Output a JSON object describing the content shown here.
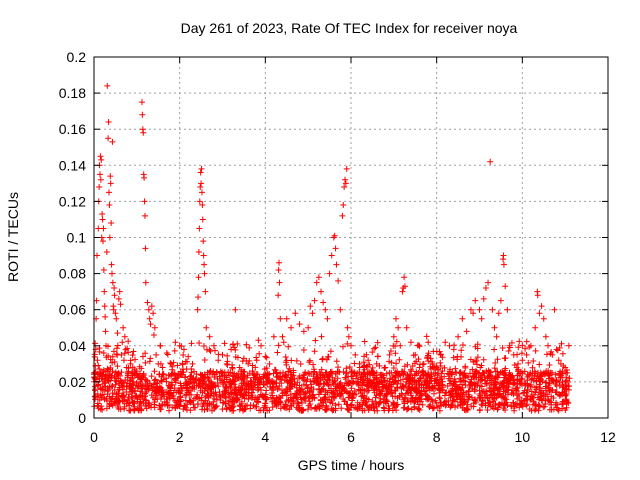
{
  "chart_data": {
    "type": "scatter",
    "title": "Day 261 of 2023, Rate Of TEC Index for receiver noya",
    "xlabel": "GPS time / hours",
    "ylabel": "ROTI / TECUs",
    "xlim": [
      0,
      12
    ],
    "ylim": [
      0,
      0.2
    ],
    "xticks": [
      "0",
      "2",
      "4",
      "6",
      "8",
      "10",
      "12"
    ],
    "yticks": [
      "0",
      "0.02",
      "0.04",
      "0.06",
      "0.08",
      "0.1",
      "0.12",
      "0.14",
      "0.16",
      "0.18",
      "0.2"
    ],
    "grid": true,
    "marker": "plus",
    "color": "#ff0000",
    "points": [
      [
        0.02,
        0.012
      ],
      [
        0.03,
        0.025
      ],
      [
        0.04,
        0.038
      ],
      [
        0.05,
        0.055
      ],
      [
        0.06,
        0.065
      ],
      [
        0.07,
        0.09
      ],
      [
        0.08,
        0.032
      ],
      [
        0.09,
        0.018
      ],
      [
        0.1,
        0.105
      ],
      [
        0.11,
        0.12
      ],
      [
        0.12,
        0.128
      ],
      [
        0.13,
        0.14
      ],
      [
        0.14,
        0.135
      ],
      [
        0.15,
        0.145
      ],
      [
        0.16,
        0.132
      ],
      [
        0.17,
        0.143
      ],
      [
        0.18,
        0.1
      ],
      [
        0.19,
        0.113
      ],
      [
        0.2,
        0.11
      ],
      [
        0.21,
        0.098
      ],
      [
        0.22,
        0.105
      ],
      [
        0.23,
        0.082
      ],
      [
        0.24,
        0.07
      ],
      [
        0.25,
        0.062
      ],
      [
        0.26,
        0.056
      ],
      [
        0.27,
        0.048
      ],
      [
        0.28,
        0.04
      ],
      [
        0.3,
        0.092
      ],
      [
        0.31,
        0.184
      ],
      [
        0.33,
        0.155
      ],
      [
        0.34,
        0.164
      ],
      [
        0.35,
        0.125
      ],
      [
        0.36,
        0.118
      ],
      [
        0.37,
        0.1
      ],
      [
        0.38,
        0.134
      ],
      [
        0.39,
        0.13
      ],
      [
        0.4,
        0.108
      ],
      [
        0.41,
        0.085
      ],
      [
        0.42,
        0.08
      ],
      [
        0.43,
        0.153
      ],
      [
        0.44,
        0.075
      ],
      [
        0.45,
        0.062
      ],
      [
        0.46,
        0.06
      ],
      [
        0.47,
        0.072
      ],
      [
        0.48,
        0.068
      ],
      [
        0.5,
        0.058
      ],
      [
        0.52,
        0.055
      ],
      [
        0.55,
        0.047
      ],
      [
        0.58,
        0.066
      ],
      [
        0.6,
        0.07
      ],
      [
        0.62,
        0.063
      ],
      [
        0.64,
        0.035
      ],
      [
        0.66,
        0.042
      ],
      [
        0.68,
        0.05
      ],
      [
        0.7,
        0.032
      ],
      [
        0.72,
        0.045
      ],
      [
        0.74,
        0.038
      ],
      [
        0.76,
        0.028
      ],
      [
        0.8,
        0.025
      ],
      [
        0.85,
        0.03
      ],
      [
        0.9,
        0.022
      ],
      [
        0.95,
        0.027
      ],
      [
        1.12,
        0.175
      ],
      [
        1.13,
        0.168
      ],
      [
        1.14,
        0.16
      ],
      [
        1.15,
        0.158
      ],
      [
        1.16,
        0.135
      ],
      [
        1.17,
        0.133
      ],
      [
        1.18,
        0.12
      ],
      [
        1.19,
        0.112
      ],
      [
        1.2,
        0.094
      ],
      [
        1.21,
        0.075
      ],
      [
        1.25,
        0.064
      ],
      [
        1.28,
        0.06
      ],
      [
        1.3,
        0.055
      ],
      [
        1.32,
        0.052
      ],
      [
        1.35,
        0.062
      ],
      [
        1.38,
        0.058
      ],
      [
        1.4,
        0.046
      ],
      [
        1.42,
        0.05
      ],
      [
        1.45,
        0.035
      ],
      [
        1.5,
        0.03
      ],
      [
        1.55,
        0.04
      ],
      [
        1.6,
        0.028
      ],
      [
        1.7,
        0.036
      ],
      [
        1.8,
        0.03
      ],
      [
        1.9,
        0.042
      ],
      [
        2.0,
        0.04
      ],
      [
        2.1,
        0.038
      ],
      [
        2.2,
        0.034
      ],
      [
        2.3,
        0.03
      ],
      [
        2.42,
        0.06
      ],
      [
        2.43,
        0.067
      ],
      [
        2.44,
        0.078
      ],
      [
        2.45,
        0.092
      ],
      [
        2.46,
        0.105
      ],
      [
        2.47,
        0.12
      ],
      [
        2.48,
        0.128
      ],
      [
        2.49,
        0.136
      ],
      [
        2.5,
        0.13
      ],
      [
        2.51,
        0.138
      ],
      [
        2.52,
        0.125
      ],
      [
        2.53,
        0.118
      ],
      [
        2.54,
        0.11
      ],
      [
        2.55,
        0.098
      ],
      [
        2.56,
        0.09
      ],
      [
        2.57,
        0.085
      ],
      [
        2.58,
        0.08
      ],
      [
        2.6,
        0.07
      ],
      [
        2.62,
        0.05
      ],
      [
        2.7,
        0.045
      ],
      [
        2.8,
        0.04
      ],
      [
        2.9,
        0.032
      ],
      [
        3.0,
        0.035
      ],
      [
        3.1,
        0.03
      ],
      [
        3.2,
        0.038
      ],
      [
        3.3,
        0.06
      ],
      [
        3.4,
        0.028
      ],
      [
        3.5,
        0.033
      ],
      [
        3.6,
        0.03
      ],
      [
        3.7,
        0.026
      ],
      [
        3.8,
        0.032
      ],
      [
        3.9,
        0.04
      ],
      [
        4.0,
        0.034
      ],
      [
        4.1,
        0.03
      ],
      [
        4.2,
        0.045
      ],
      [
        4.3,
        0.068
      ],
      [
        4.31,
        0.082
      ],
      [
        4.32,
        0.086
      ],
      [
        4.33,
        0.075
      ],
      [
        4.35,
        0.055
      ],
      [
        4.4,
        0.045
      ],
      [
        4.5,
        0.055
      ],
      [
        4.6,
        0.05
      ],
      [
        4.7,
        0.058
      ],
      [
        4.8,
        0.052
      ],
      [
        4.9,
        0.048
      ],
      [
        5.0,
        0.05
      ],
      [
        5.05,
        0.062
      ],
      [
        5.1,
        0.058
      ],
      [
        5.15,
        0.065
      ],
      [
        5.2,
        0.075
      ],
      [
        5.25,
        0.078
      ],
      [
        5.3,
        0.07
      ],
      [
        5.35,
        0.064
      ],
      [
        5.4,
        0.06
      ],
      [
        5.45,
        0.055
      ],
      [
        5.5,
        0.08
      ],
      [
        5.55,
        0.09
      ],
      [
        5.6,
        0.1
      ],
      [
        5.62,
        0.101
      ],
      [
        5.64,
        0.094
      ],
      [
        5.66,
        0.085
      ],
      [
        5.7,
        0.076
      ],
      [
        5.75,
        0.06
      ],
      [
        5.8,
        0.112
      ],
      [
        5.82,
        0.118
      ],
      [
        5.84,
        0.128
      ],
      [
        5.86,
        0.132
      ],
      [
        5.88,
        0.13
      ],
      [
        5.9,
        0.138
      ],
      [
        5.92,
        0.05
      ],
      [
        5.95,
        0.045
      ],
      [
        6.0,
        0.04
      ],
      [
        6.1,
        0.035
      ],
      [
        6.2,
        0.03
      ],
      [
        6.3,
        0.028
      ],
      [
        6.4,
        0.032
      ],
      [
        6.5,
        0.026
      ],
      [
        6.6,
        0.03
      ],
      [
        6.7,
        0.024
      ],
      [
        6.8,
        0.028
      ],
      [
        6.9,
        0.035
      ],
      [
        7.0,
        0.045
      ],
      [
        7.05,
        0.055
      ],
      [
        7.1,
        0.05
      ],
      [
        7.15,
        0.04
      ],
      [
        7.2,
        0.07
      ],
      [
        7.22,
        0.072
      ],
      [
        7.24,
        0.078
      ],
      [
        7.26,
        0.073
      ],
      [
        7.3,
        0.05
      ],
      [
        7.4,
        0.042
      ],
      [
        7.5,
        0.035
      ],
      [
        7.6,
        0.028
      ],
      [
        7.7,
        0.03
      ],
      [
        7.8,
        0.025
      ],
      [
        7.9,
        0.03
      ],
      [
        8.0,
        0.028
      ],
      [
        8.1,
        0.035
      ],
      [
        8.2,
        0.042
      ],
      [
        8.3,
        0.04
      ],
      [
        8.4,
        0.038
      ],
      [
        8.5,
        0.045
      ],
      [
        8.6,
        0.055
      ],
      [
        8.7,
        0.048
      ],
      [
        8.8,
        0.06
      ],
      [
        8.85,
        0.058
      ],
      [
        8.9,
        0.065
      ],
      [
        9.0,
        0.06
      ],
      [
        9.05,
        0.055
      ],
      [
        9.1,
        0.066
      ],
      [
        9.15,
        0.072
      ],
      [
        9.2,
        0.075
      ],
      [
        9.25,
        0.142
      ],
      [
        9.3,
        0.06
      ],
      [
        9.35,
        0.05
      ],
      [
        9.4,
        0.045
      ],
      [
        9.45,
        0.058
      ],
      [
        9.5,
        0.065
      ],
      [
        9.55,
        0.088
      ],
      [
        9.56,
        0.09
      ],
      [
        9.57,
        0.085
      ],
      [
        9.6,
        0.073
      ],
      [
        9.65,
        0.06
      ],
      [
        9.7,
        0.04
      ],
      [
        9.8,
        0.035
      ],
      [
        9.9,
        0.03
      ],
      [
        10.0,
        0.032
      ],
      [
        10.1,
        0.035
      ],
      [
        10.2,
        0.04
      ],
      [
        10.3,
        0.05
      ],
      [
        10.35,
        0.07
      ],
      [
        10.36,
        0.068
      ],
      [
        10.4,
        0.058
      ],
      [
        10.45,
        0.062
      ],
      [
        10.5,
        0.055
      ],
      [
        10.55,
        0.045
      ],
      [
        10.6,
        0.04
      ],
      [
        10.7,
        0.035
      ],
      [
        10.75,
        0.06
      ],
      [
        10.8,
        0.038
      ],
      [
        10.85,
        0.032
      ],
      [
        10.9,
        0.03
      ],
      [
        11.0,
        0.028
      ],
      [
        11.05,
        0.025
      ],
      [
        11.1,
        0.022
      ]
    ]
  }
}
